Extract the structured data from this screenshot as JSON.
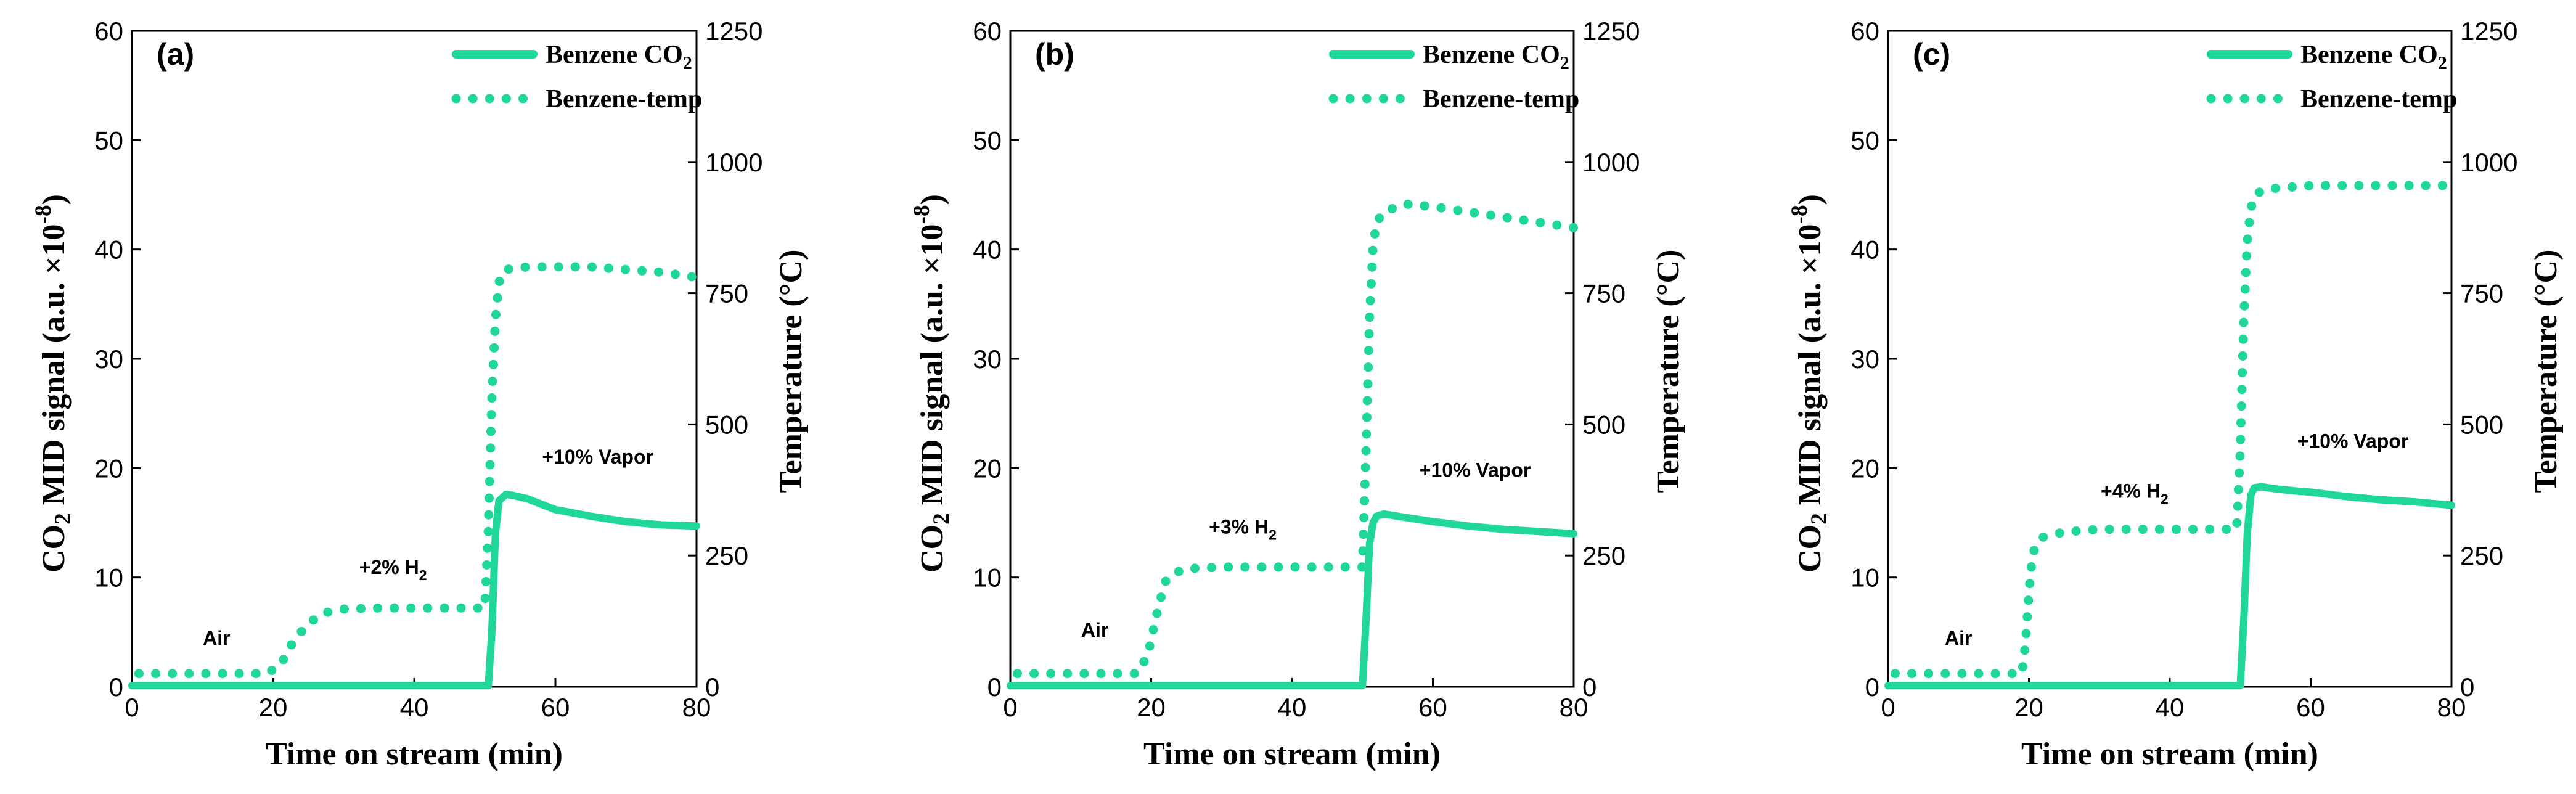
{
  "chart_data": [
    {
      "type": "line",
      "panel_label": "(a)",
      "xlabel": "Time on stream (min)",
      "ylabel_left": "CO2 MID signal (a.u. ×10-8)",
      "ylabel_right": "Temperature (°C)",
      "xlim": [
        0,
        80
      ],
      "ylim_left": [
        0,
        60
      ],
      "ylim_right": [
        0,
        1250
      ],
      "x_ticks": [
        "0",
        "20",
        "40",
        "60",
        "80"
      ],
      "y_left_ticks": [
        "0",
        "10",
        "20",
        "30",
        "40",
        "50",
        "60"
      ],
      "y_right_ticks": [
        "0",
        "250",
        "500",
        "750",
        "1000",
        "1250"
      ],
      "legend": [
        "Benzene CO2",
        "Benzene-temp"
      ],
      "color": "#1fd79a",
      "annotations": [
        {
          "text": "Air",
          "x": 12,
          "y_right": 80
        },
        {
          "text": "+2% H2",
          "x": 37,
          "y_right": 215
        },
        {
          "text": "+10% Vapor",
          "x": 66,
          "y_right": 425
        }
      ],
      "series": [
        {
          "name": "Benzene CO2",
          "axis": "left",
          "style": "solid",
          "x": [
            0,
            50.5,
            51,
            51.5,
            52,
            53,
            54,
            56,
            58,
            60,
            65,
            70,
            75,
            80
          ],
          "y": [
            0.1,
            0.1,
            5,
            14,
            17,
            17.6,
            17.5,
            17.2,
            16.7,
            16.2,
            15.6,
            15.1,
            14.8,
            14.7
          ]
        },
        {
          "name": "Benzene-temp",
          "axis": "right",
          "style": "dotted",
          "x": [
            1,
            5,
            10,
            15,
            19,
            21,
            23,
            25,
            27,
            30,
            35,
            40,
            45,
            50,
            50.5,
            51,
            51.5,
            52,
            52.5,
            53,
            54,
            56,
            60,
            65,
            70,
            75,
            80
          ],
          "y": [
            25,
            25,
            25,
            25,
            25,
            40,
            90,
            120,
            140,
            148,
            150,
            150,
            150,
            150,
            300,
            550,
            700,
            770,
            790,
            795,
            797,
            800,
            800,
            800,
            795,
            790,
            780
          ]
        }
      ]
    },
    {
      "type": "line",
      "panel_label": "(b)",
      "xlabel": "Time on stream (min)",
      "ylabel_left": "CO2 MID signal (a.u. ×10-8)",
      "ylabel_right": "Temperature (°C)",
      "xlim": [
        0,
        80
      ],
      "ylim_left": [
        0,
        60
      ],
      "ylim_right": [
        0,
        1250
      ],
      "x_ticks": [
        "0",
        "20",
        "40",
        "60",
        "80"
      ],
      "y_left_ticks": [
        "0",
        "10",
        "20",
        "30",
        "40",
        "50",
        "60"
      ],
      "y_right_ticks": [
        "0",
        "250",
        "500",
        "750",
        "1000",
        "1250"
      ],
      "legend": [
        "Benzene CO2",
        "Benzene-temp"
      ],
      "color": "#1fd79a",
      "annotations": [
        {
          "text": "Air",
          "x": 12,
          "y_right": 95
        },
        {
          "text": "+3% H2",
          "x": 33,
          "y_right": 292
        },
        {
          "text": "+10% Vapor",
          "x": 66,
          "y_right": 400
        }
      ],
      "series": [
        {
          "name": "Benzene CO2",
          "axis": "left",
          "style": "solid",
          "x": [
            0,
            50,
            50.5,
            51,
            51.5,
            52,
            53,
            55,
            58,
            60,
            65,
            70,
            75,
            80
          ],
          "y": [
            0.1,
            0.1,
            6,
            13,
            15,
            15.6,
            15.8,
            15.6,
            15.3,
            15.1,
            14.7,
            14.4,
            14.2,
            14.0
          ]
        },
        {
          "name": "Benzene-temp",
          "axis": "right",
          "style": "dotted",
          "x": [
            1,
            5,
            10,
            15,
            18,
            19.5,
            21,
            22,
            23,
            25,
            30,
            35,
            40,
            45,
            50,
            50.5,
            51,
            51.5,
            52,
            53,
            55,
            56,
            60,
            65,
            70,
            75,
            80
          ],
          "y": [
            25,
            25,
            25,
            25,
            25,
            60,
            150,
            200,
            215,
            225,
            228,
            228,
            228,
            228,
            228,
            450,
            700,
            840,
            885,
            905,
            915,
            920,
            915,
            905,
            895,
            885,
            875
          ]
        }
      ]
    },
    {
      "type": "line",
      "panel_label": "(c)",
      "xlabel": "Time on stream (min)",
      "ylabel_left": "CO2 MID signal (a.u. ×10-8)",
      "ylabel_right": "Temperature (°C)",
      "xlim": [
        0,
        80
      ],
      "ylim_left": [
        0,
        60
      ],
      "ylim_right": [
        0,
        1250
      ],
      "x_ticks": [
        "0",
        "20",
        "40",
        "60",
        "80"
      ],
      "y_left_ticks": [
        "0",
        "10",
        "20",
        "30",
        "40",
        "50",
        "60"
      ],
      "y_right_ticks": [
        "0",
        "250",
        "500",
        "750",
        "1000",
        "1250"
      ],
      "legend": [
        "Benzene CO2",
        "Benzene-temp"
      ],
      "color": "#1fd79a",
      "annotations": [
        {
          "text": "Air",
          "x": 10,
          "y_right": 80
        },
        {
          "text": "+4% H2",
          "x": 35,
          "y_right": 360
        },
        {
          "text": "+10% Vapor",
          "x": 66,
          "y_right": 455
        }
      ],
      "series": [
        {
          "name": "Benzene CO2",
          "axis": "left",
          "style": "solid",
          "x": [
            0,
            50,
            50.5,
            51,
            51.5,
            52,
            53,
            55,
            58,
            60,
            65,
            70,
            75,
            80
          ],
          "y": [
            0.1,
            0.1,
            6,
            14,
            17.5,
            18.2,
            18.3,
            18.1,
            17.9,
            17.8,
            17.4,
            17.1,
            16.9,
            16.6
          ]
        },
        {
          "name": "Benzene-temp",
          "axis": "right",
          "style": "dotted",
          "x": [
            1,
            5,
            10,
            15,
            19,
            19.5,
            20,
            20.5,
            21,
            22,
            25,
            30,
            35,
            40,
            45,
            49.5,
            50,
            50.5,
            51,
            51.5,
            52,
            53,
            55,
            60,
            65,
            70,
            75,
            80
          ],
          "y": [
            25,
            25,
            25,
            25,
            25,
            80,
            180,
            250,
            270,
            285,
            295,
            300,
            300,
            300,
            300,
            300,
            450,
            700,
            850,
            910,
            935,
            945,
            950,
            955,
            955,
            955,
            955,
            955
          ]
        }
      ]
    }
  ]
}
